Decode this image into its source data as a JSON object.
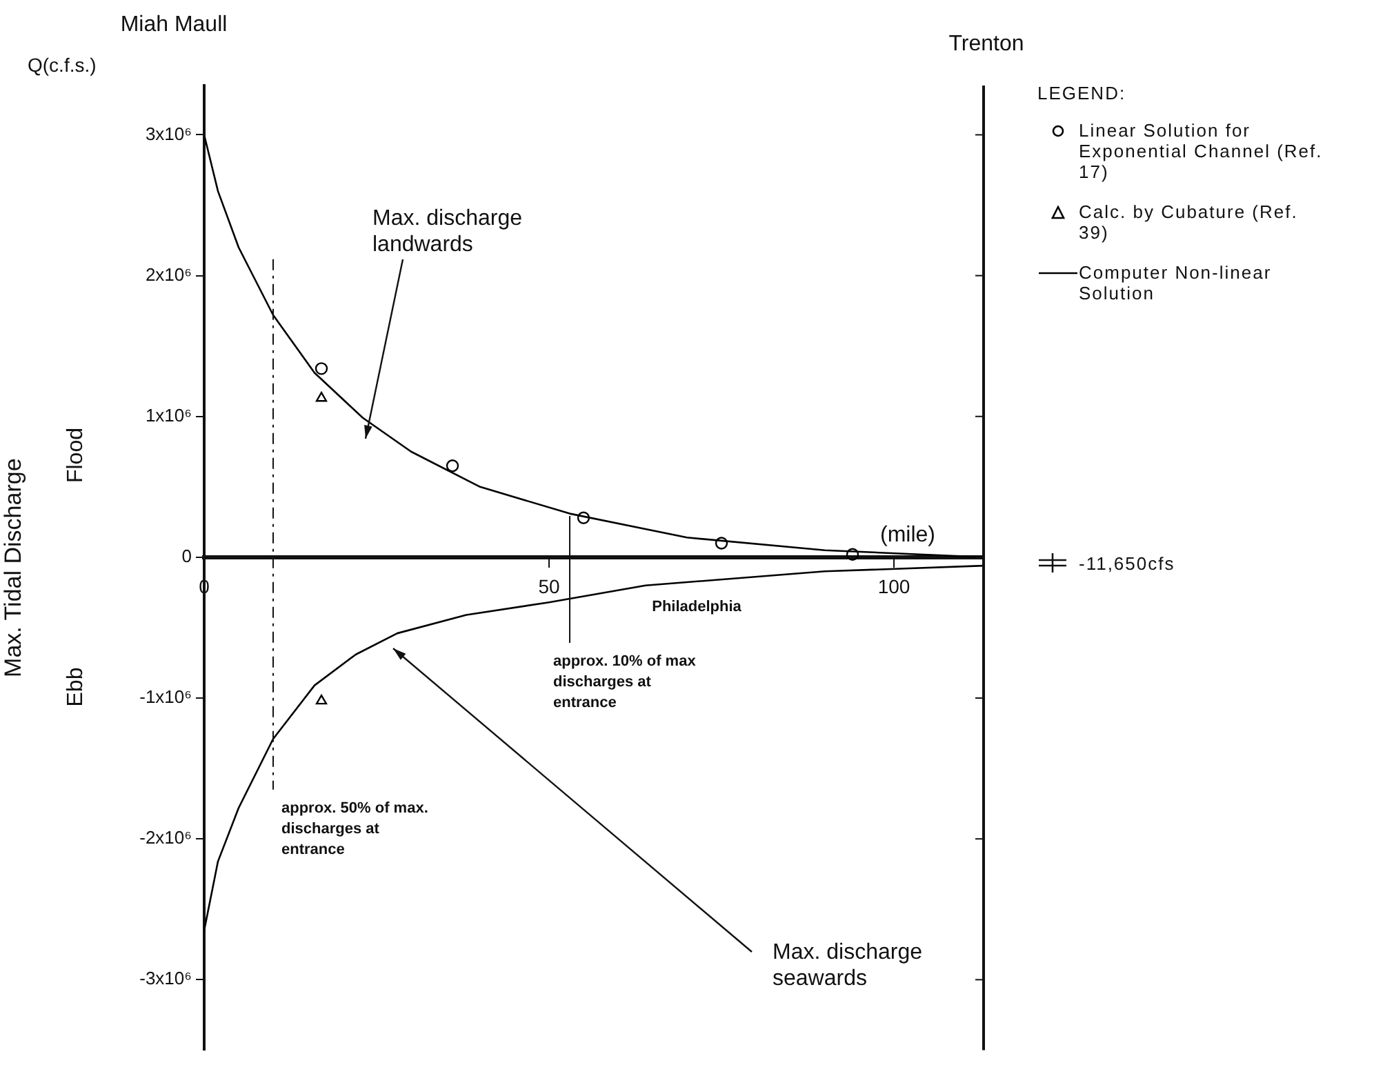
{
  "chart_data": {
    "type": "line",
    "ylabel": "Max. Tidal Discharge",
    "xlabel": "(mile)",
    "legend_title": "LEGEND:",
    "legend": "right",
    "grid": false,
    "xlim": [
      0,
      113
    ],
    "xticks": [
      0,
      50,
      100
    ],
    "ylim": [
      -3500000,
      3350000
    ],
    "yticks": [
      {
        "value": -3000000,
        "label": "-3x10⁶"
      },
      {
        "value": -2000000,
        "label": "-2x10⁶"
      },
      {
        "value": -1000000,
        "label": "-1x10⁶"
      },
      0,
      {
        "value": 1000000,
        "label": "1x10⁶"
      },
      {
        "value": 2000000,
        "label": "2x10⁶"
      },
      {
        "value": 3000000,
        "label": "3x10⁶"
      }
    ],
    "series": [
      {
        "name": "Linear Solution for Exponential Channel (Ref. 17)",
        "type": "scatter",
        "marker": "circle",
        "color": "#000000",
        "x": [
          17,
          36,
          55,
          75,
          94
        ],
        "values": [
          1340000,
          650000,
          280000,
          100000,
          20000
        ]
      },
      {
        "name": "Calc. by Cubature (Ref. 39)",
        "type": "scatter",
        "marker": "triangle",
        "color": "#000000",
        "x": [
          17,
          17
        ],
        "values": [
          1130000,
          -1020000
        ]
      },
      {
        "name": "Computer Non-linear Solution",
        "type": "line",
        "marker": "none",
        "color": "#000000",
        "x": [
          0,
          2,
          5,
          10,
          16,
          23,
          30,
          40,
          53,
          70,
          90,
          113,
          null,
          0,
          2,
          5,
          10,
          16,
          22,
          28,
          38,
          50,
          64,
          90,
          113
        ],
        "values": [
          3000000,
          2600000,
          2200000,
          1720000,
          1310000,
          990000,
          750000,
          500000,
          310000,
          140000,
          50000,
          0,
          null,
          -2650000,
          -2160000,
          -1780000,
          -1290000,
          -910000,
          -690000,
          -540000,
          -410000,
          -320000,
          -200000,
          -100000,
          -60000
        ]
      }
    ],
    "ref_lines": [
      {
        "axis": "x",
        "value": 10,
        "label": "approx. 50% of max. discharges at entrance",
        "line_style": "dashed"
      },
      {
        "axis": "x",
        "value": 53,
        "label": "approx. 10% of max discharges at entrance",
        "line_style": "solid"
      }
    ],
    "annotations": [
      "Q(c.f.s.)",
      "-11,650cfs",
      "Miah Maull",
      "Trenton",
      "Max. discharge landwards",
      "Max. discharge seawards",
      "Philadelphia",
      "Flood",
      "Ebb"
    ]
  }
}
